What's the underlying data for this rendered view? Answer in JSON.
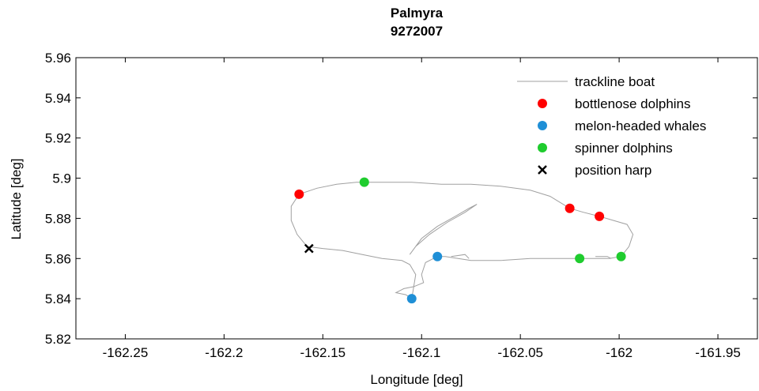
{
  "chart_data": {
    "type": "scatter",
    "title": "Palmyra",
    "subtitle": "9272007",
    "xlabel": "Longitude [deg]",
    "ylabel": "Latitude [deg]",
    "xlim": [
      -162.275,
      -161.93
    ],
    "ylim": [
      5.82,
      5.96
    ],
    "xticks": [
      -162.25,
      -162.2,
      -162.15,
      -162.1,
      -162.05,
      -162.0,
      -161.95
    ],
    "xtick_labels": [
      "-162.25",
      "-162.2",
      "-162.15",
      "-162.1",
      "-162.05",
      "-162",
      "-161.95"
    ],
    "yticks": [
      5.82,
      5.84,
      5.86,
      5.88,
      5.9,
      5.92,
      5.94,
      5.96
    ],
    "ytick_labels": [
      "5.82",
      "5.84",
      "5.86",
      "5.88",
      "5.9",
      "5.92",
      "5.94",
      "5.96"
    ],
    "grid": false,
    "legend_position": "top-right",
    "series": [
      {
        "name": "trackline boat",
        "kind": "line",
        "color": "#a0a0a0",
        "points": [
          [
            -162.128,
            5.898
          ],
          [
            -162.12,
            5.898
          ],
          [
            -162.105,
            5.898
          ],
          [
            -162.09,
            5.897
          ],
          [
            -162.075,
            5.897
          ],
          [
            -162.06,
            5.896
          ],
          [
            -162.045,
            5.894
          ],
          [
            -162.035,
            5.891
          ],
          [
            -162.03,
            5.888
          ],
          [
            -162.025,
            5.885
          ],
          [
            -162.018,
            5.883
          ],
          [
            -162.01,
            5.881
          ],
          [
            -162.003,
            5.879
          ],
          [
            -161.996,
            5.877
          ],
          [
            -161.993,
            5.872
          ],
          [
            -161.995,
            5.866
          ],
          [
            -161.999,
            5.861
          ],
          [
            -162.005,
            5.86
          ],
          [
            -162.012,
            5.86
          ],
          [
            -162.02,
            5.86
          ],
          [
            -162.03,
            5.86
          ],
          [
            -162.045,
            5.86
          ],
          [
            -162.06,
            5.859
          ],
          [
            -162.075,
            5.859
          ],
          [
            -162.088,
            5.861
          ],
          [
            -162.092,
            5.861
          ],
          [
            -162.098,
            5.858
          ],
          [
            -162.1,
            5.852
          ],
          [
            -162.099,
            5.848
          ],
          [
            -162.104,
            5.846
          ],
          [
            -162.109,
            5.845
          ],
          [
            -162.113,
            5.843
          ],
          [
            -162.108,
            5.842
          ],
          [
            -162.105,
            5.84
          ],
          [
            -162.104,
            5.846
          ],
          [
            -162.103,
            5.852
          ],
          [
            -162.106,
            5.857
          ],
          [
            -162.11,
            5.859
          ],
          [
            -162.12,
            5.86
          ],
          [
            -162.13,
            5.862
          ],
          [
            -162.14,
            5.864
          ],
          [
            -162.15,
            5.865
          ],
          [
            -162.158,
            5.866
          ],
          [
            -162.163,
            5.872
          ],
          [
            -162.166,
            5.879
          ],
          [
            -162.166,
            5.886
          ],
          [
            -162.162,
            5.892
          ],
          [
            -162.153,
            5.895
          ],
          [
            -162.143,
            5.897
          ],
          [
            -162.133,
            5.898
          ],
          [
            -162.128,
            5.898
          ]
        ]
      },
      {
        "name": "trackline boat",
        "kind": "line",
        "color": "#a0a0a0",
        "points": [
          [
            -162.106,
            5.862
          ],
          [
            -162.1,
            5.87
          ],
          [
            -162.092,
            5.876
          ],
          [
            -162.083,
            5.881
          ],
          [
            -162.076,
            5.885
          ],
          [
            -162.072,
            5.887
          ],
          [
            -162.078,
            5.883
          ],
          [
            -162.087,
            5.878
          ],
          [
            -162.096,
            5.872
          ],
          [
            -162.103,
            5.866
          ],
          [
            -162.106,
            5.862
          ]
        ]
      },
      {
        "name": "trackline boat",
        "kind": "line",
        "color": "#a0a0a0",
        "points": [
          [
            -162.085,
            5.861
          ],
          [
            -162.078,
            5.862
          ],
          [
            -162.076,
            5.86
          ]
        ]
      },
      {
        "name": "trackline boat",
        "kind": "line",
        "color": "#a0a0a0",
        "points": [
          [
            -162.012,
            5.861
          ],
          [
            -162.006,
            5.861
          ],
          [
            -162.004,
            5.86
          ]
        ]
      },
      {
        "name": "bottlenose dolphins",
        "kind": "scatter",
        "marker": "circle",
        "color": "#ff0000",
        "points": [
          [
            -162.162,
            5.892
          ],
          [
            -162.025,
            5.885
          ],
          [
            -162.01,
            5.881
          ]
        ]
      },
      {
        "name": "melon-headed whales",
        "kind": "scatter",
        "marker": "circle",
        "color": "#1f8fd6",
        "points": [
          [
            -162.092,
            5.861
          ],
          [
            -162.105,
            5.84
          ]
        ]
      },
      {
        "name": "spinner dolphins",
        "kind": "scatter",
        "marker": "circle",
        "color": "#1fcc2e",
        "points": [
          [
            -162.129,
            5.898
          ],
          [
            -162.02,
            5.86
          ],
          [
            -161.999,
            5.861
          ]
        ]
      },
      {
        "name": "position harp",
        "kind": "scatter",
        "marker": "x",
        "color": "#000000",
        "points": [
          [
            -162.157,
            5.865
          ]
        ]
      }
    ],
    "legend": [
      {
        "label": "trackline boat",
        "kind": "line",
        "color": "#a0a0a0"
      },
      {
        "label": "bottlenose dolphins",
        "kind": "circle",
        "color": "#ff0000"
      },
      {
        "label": "melon-headed whales",
        "kind": "circle",
        "color": "#1f8fd6"
      },
      {
        "label": "spinner dolphins",
        "kind": "circle",
        "color": "#1fcc2e"
      },
      {
        "label": "position harp",
        "kind": "x",
        "color": "#000000"
      }
    ]
  }
}
